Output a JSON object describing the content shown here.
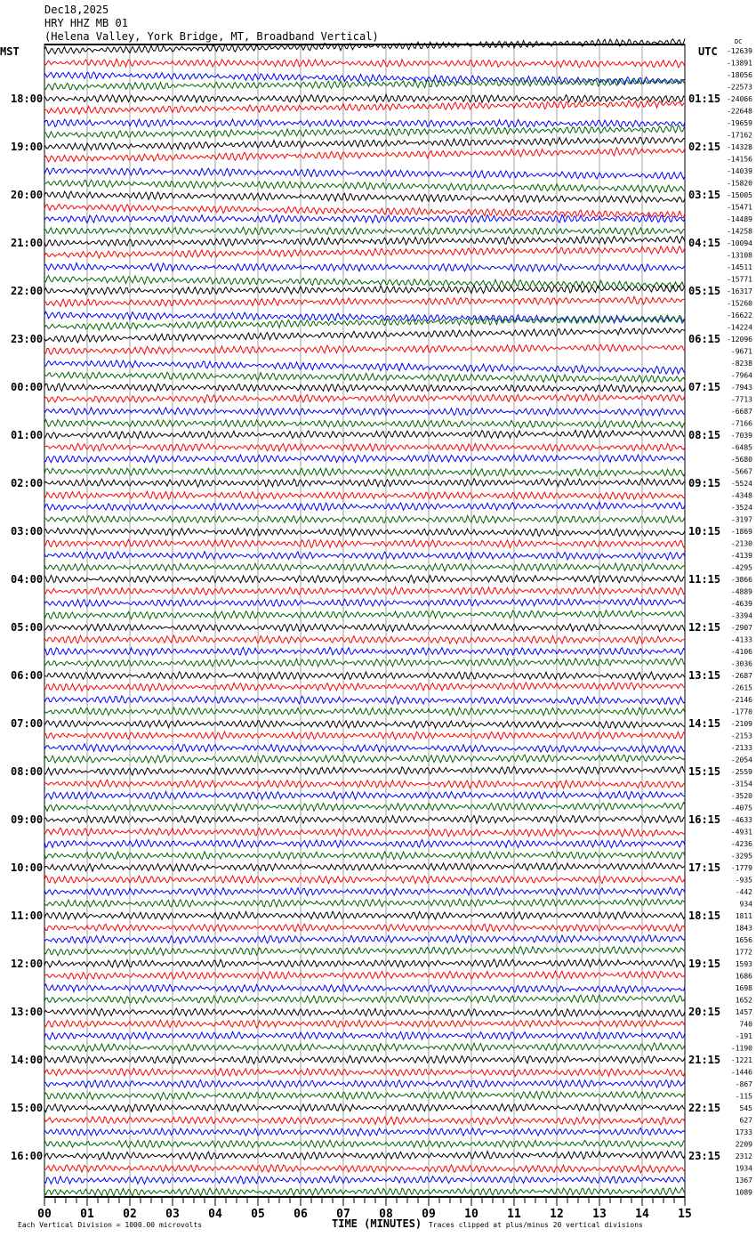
{
  "header": {
    "date": "Dec18,2025",
    "station": "HRY HHZ MB 01",
    "location": "(Helena Valley, York Bridge, MT, Broadband Vertical)"
  },
  "left_timezone": "MST",
  "right_timezone": "UTC",
  "dc_label": "DC",
  "footer": {
    "scale": "Each Vertical Division = 1000.00 microvolts",
    "clip": "Traces clipped at plus/minus 20 vertical divisions"
  },
  "chart_data": {
    "type": "line",
    "xlabel": "TIME (MINUTES)",
    "x_ticks": [
      "00",
      "01",
      "02",
      "03",
      "04",
      "05",
      "06",
      "07",
      "08",
      "09",
      "10",
      "11",
      "12",
      "13",
      "14",
      "15"
    ],
    "xlim": [
      0,
      15
    ],
    "grid": true,
    "trace_colors": [
      "#000000",
      "#ff0000",
      "#0000ff",
      "#006400"
    ],
    "left_hour_labels": [
      "18:00",
      "19:00",
      "20:00",
      "21:00",
      "22:00",
      "23:00",
      "00:00",
      "01:00",
      "02:00",
      "03:00",
      "04:00",
      "05:00",
      "06:00",
      "07:00",
      "08:00",
      "09:00",
      "10:00",
      "11:00",
      "12:00",
      "13:00",
      "14:00",
      "15:00",
      "16:00"
    ],
    "right_hour_labels": [
      "01:15",
      "02:15",
      "03:15",
      "04:15",
      "05:15",
      "06:15",
      "07:15",
      "08:15",
      "09:15",
      "10:15",
      "11:15",
      "12:15",
      "13:15",
      "14:15",
      "15:15",
      "16:15",
      "17:15",
      "18:15",
      "19:15",
      "20:15",
      "21:15",
      "22:15",
      "23:15"
    ],
    "dc_offsets": [
      "-12639",
      "-13891",
      "-18056",
      "-22573",
      "-24066",
      "-22648",
      "-19659",
      "-17162",
      "-14328",
      "-14156",
      "-14039",
      "-15820",
      "-15005",
      "-15471",
      "-14489",
      "-14258",
      "-10094",
      "-13108",
      "-14511",
      "-15771",
      "-16317",
      "-15260",
      "-16622",
      "-14224",
      "-12096",
      "-9671",
      "-8238",
      "-7964",
      "-7943",
      "-7713",
      "-6687",
      "-7166",
      "-7039",
      "-6485",
      "-5680",
      "-5667",
      "-5524",
      "-4348",
      "-3524",
      "-3197",
      "-1869",
      "-2130",
      "-4139",
      "-4295",
      "-3866",
      "-4889",
      "-4639",
      "-3394",
      "-2907",
      "-4133",
      "-4106",
      "-3036",
      "-2687",
      "-2615",
      "-2146",
      "-1770",
      "-2109",
      "-2153",
      "-2133",
      "-2054",
      "-2559",
      "-3154",
      "-3520",
      "-4075",
      "-4633",
      "-4931",
      "-4236",
      "-3295",
      "-1779",
      "-935",
      "-442",
      "934",
      "1811",
      "1843",
      "1656",
      "1772",
      "1593",
      "1686",
      "1698",
      "1652",
      "1457",
      "740",
      "-191",
      "-1190",
      "-1221",
      "-1446",
      "-867",
      "-115",
      "545",
      "627",
      "1733",
      "2209",
      "2312",
      "1934",
      "1367",
      "1089"
    ]
  }
}
